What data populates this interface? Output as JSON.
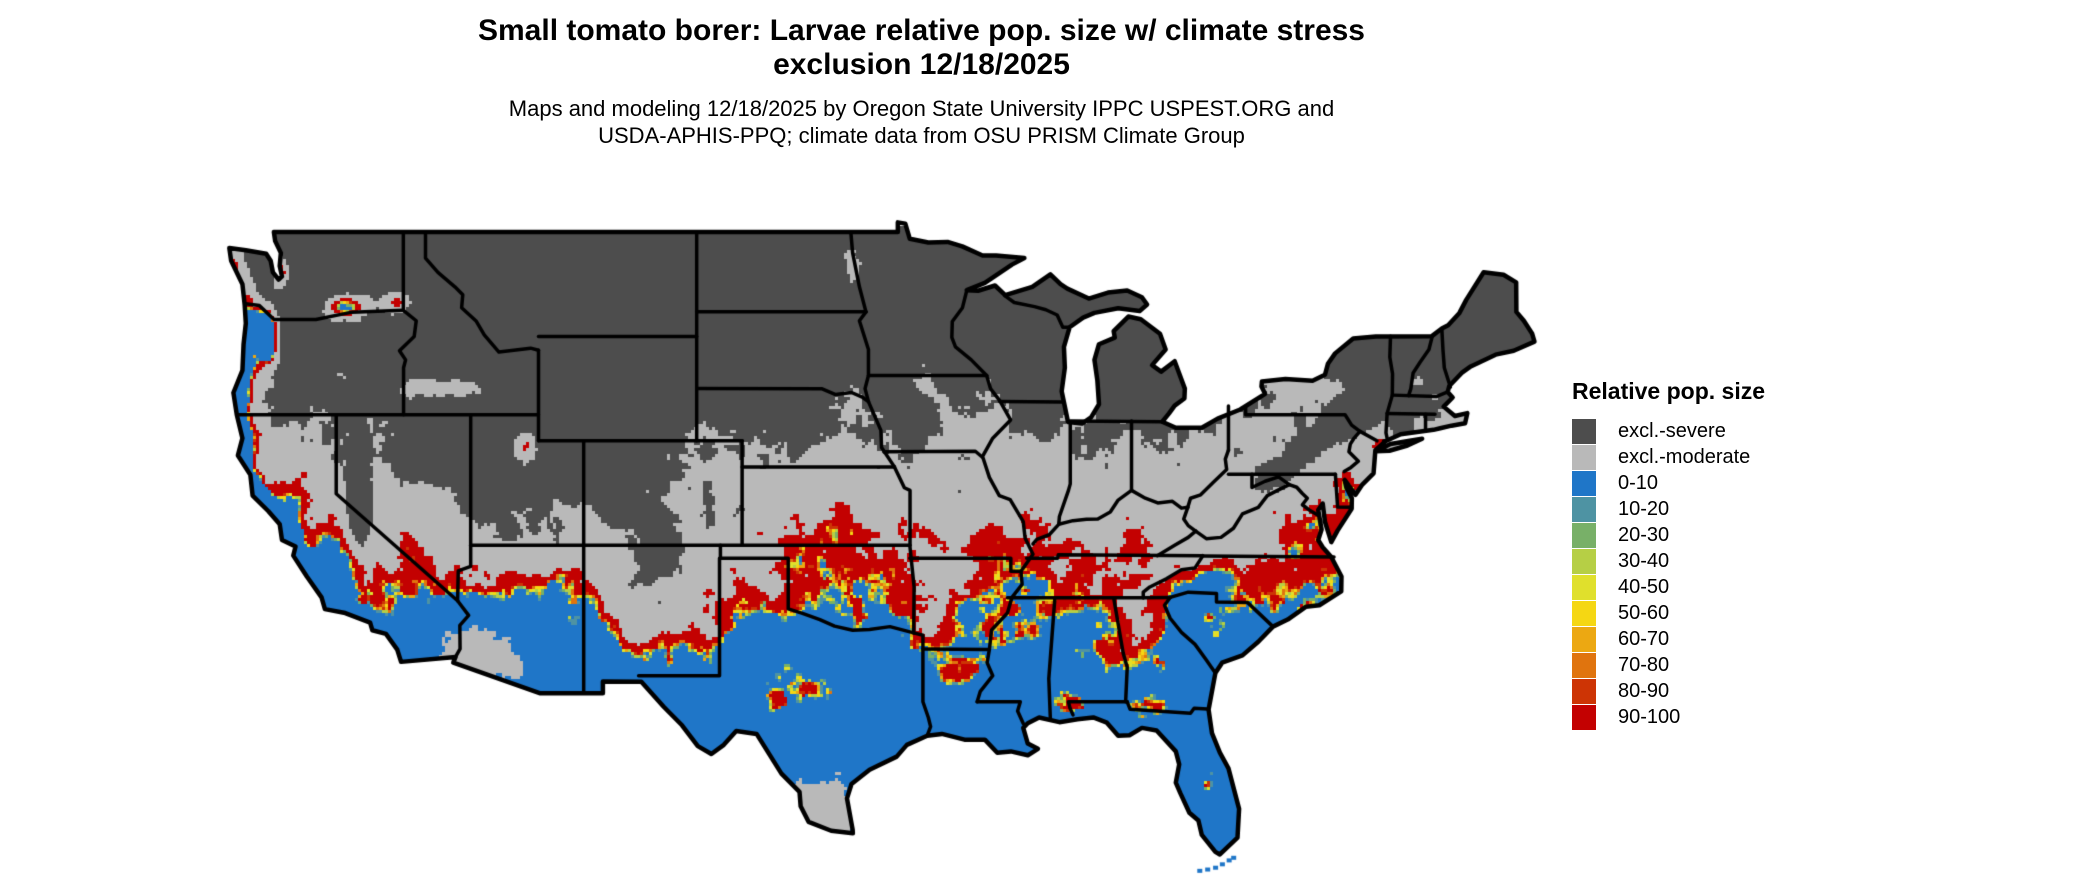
{
  "title": {
    "line1": "Small tomato borer: Larvae relative pop. size w/ climate stress",
    "line2": "exclusion 12/18/2025"
  },
  "subtitle": {
    "line1": "Maps and modeling 12/18/2025 by Oregon State University IPPC USPEST.ORG and",
    "line2": "USDA-APHIS-PPQ; climate data from OSU PRISM Climate Group"
  },
  "legend": {
    "title": "Relative pop. size",
    "items": [
      {
        "label": "excl.-severe",
        "color": "#4d4d4d"
      },
      {
        "label": "excl.-moderate",
        "color": "#b9b9b9"
      },
      {
        "label": "0-10",
        "color": "#1f76c8"
      },
      {
        "label": "10-20",
        "color": "#4e93a3"
      },
      {
        "label": "20-30",
        "color": "#78b068"
      },
      {
        "label": "30-40",
        "color": "#b6cf45"
      },
      {
        "label": "40-50",
        "color": "#e0e02c"
      },
      {
        "label": "50-60",
        "color": "#f5d713"
      },
      {
        "label": "60-70",
        "color": "#eca812"
      },
      {
        "label": "70-80",
        "color": "#e0740e"
      },
      {
        "label": "80-90",
        "color": "#cd3405"
      },
      {
        "label": "90-100",
        "color": "#c30101"
      }
    ]
  },
  "map": {
    "background": "#ffffff",
    "outline_color": "#000000"
  }
}
